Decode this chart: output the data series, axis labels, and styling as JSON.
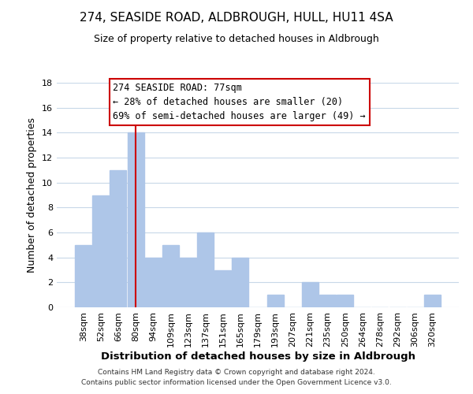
{
  "title": "274, SEASIDE ROAD, ALDBROUGH, HULL, HU11 4SA",
  "subtitle": "Size of property relative to detached houses in Aldbrough",
  "xlabel": "Distribution of detached houses by size in Aldbrough",
  "ylabel": "Number of detached properties",
  "footer_line1": "Contains HM Land Registry data © Crown copyright and database right 2024.",
  "footer_line2": "Contains public sector information licensed under the Open Government Licence v3.0.",
  "bar_labels": [
    "38sqm",
    "52sqm",
    "66sqm",
    "80sqm",
    "94sqm",
    "109sqm",
    "123sqm",
    "137sqm",
    "151sqm",
    "165sqm",
    "179sqm",
    "193sqm",
    "207sqm",
    "221sqm",
    "235sqm",
    "250sqm",
    "264sqm",
    "278sqm",
    "292sqm",
    "306sqm",
    "320sqm"
  ],
  "bar_values": [
    5,
    9,
    11,
    14,
    4,
    5,
    4,
    6,
    3,
    4,
    0,
    1,
    0,
    2,
    1,
    1,
    0,
    0,
    0,
    0,
    1
  ],
  "bar_color": "#aec6e8",
  "bar_edge_color": "#aec6e8",
  "annotation_box_text_line1": "274 SEASIDE ROAD: 77sqm",
  "annotation_box_text_line2": "← 28% of detached houses are smaller (20)",
  "annotation_box_text_line3": "69% of semi-detached houses are larger (49) →",
  "vline_color": "#cc0000",
  "ylim": [
    0,
    18
  ],
  "yticks": [
    0,
    2,
    4,
    6,
    8,
    10,
    12,
    14,
    16,
    18
  ],
  "bg_color": "#ffffff",
  "grid_color": "#c8d8e8",
  "title_fontsize": 11,
  "subtitle_fontsize": 9,
  "ylabel_fontsize": 9,
  "xlabel_fontsize": 9.5,
  "tick_fontsize": 8,
  "annot_fontsize": 8.5,
  "footer_fontsize": 6.5
}
